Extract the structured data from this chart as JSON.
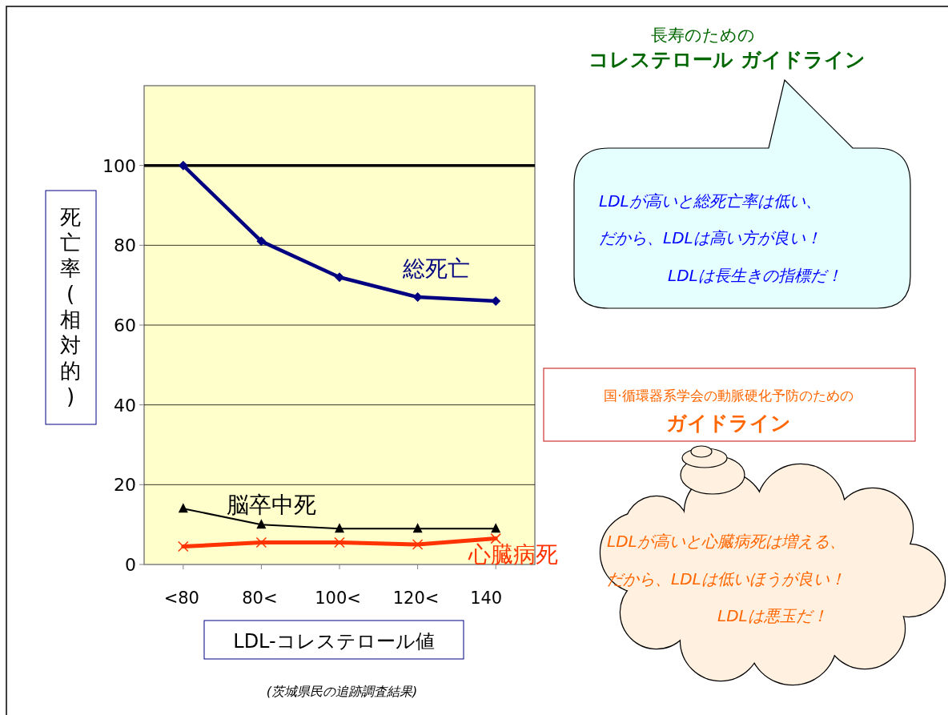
{
  "chart_data": {
    "type": "line",
    "xlabel": "LDL-コレステロール値",
    "ylabel": "死亡率(相対的)",
    "categories": [
      "<80",
      "80<",
      "100<",
      "120<",
      "140"
    ],
    "series": [
      {
        "name": "総死亡",
        "color": "#000080",
        "marker": "diamond",
        "values": [
          100,
          81,
          72,
          67,
          66
        ]
      },
      {
        "name": "脳卒中死",
        "color": "#000000",
        "marker": "triangle",
        "values": [
          14,
          10,
          9,
          9,
          9
        ]
      },
      {
        "name": "心臓病死",
        "color": "#ff3300",
        "marker": "cross",
        "values": [
          4.5,
          5.5,
          5.5,
          5,
          6.5
        ]
      }
    ],
    "ylim": [
      0,
      120
    ],
    "yticks": [
      0,
      20,
      40,
      60,
      80,
      100
    ],
    "grid": "y",
    "ref_lines": [
      {
        "axis": "y",
        "value": 100,
        "color": "#000000"
      }
    ],
    "annotations": [
      "長寿のための",
      "**コレステロール ガイドライン**",
      "*LDLが高いと総死亡率は低い、*",
      "*だから、LDLは高い方が良い！*",
      "*LDLは長生きの指標だ！*",
      "国·循環器系学会の動脈硬化予防のための",
      "**ガイドライン**",
      "*LDLが高いと心臓病死は増える、*",
      "*だから、LDLは低いほうが良い！*",
      "*LDLは悪玉だ！*",
      "*(茨城県民の追跡調査結果)*"
    ]
  }
}
